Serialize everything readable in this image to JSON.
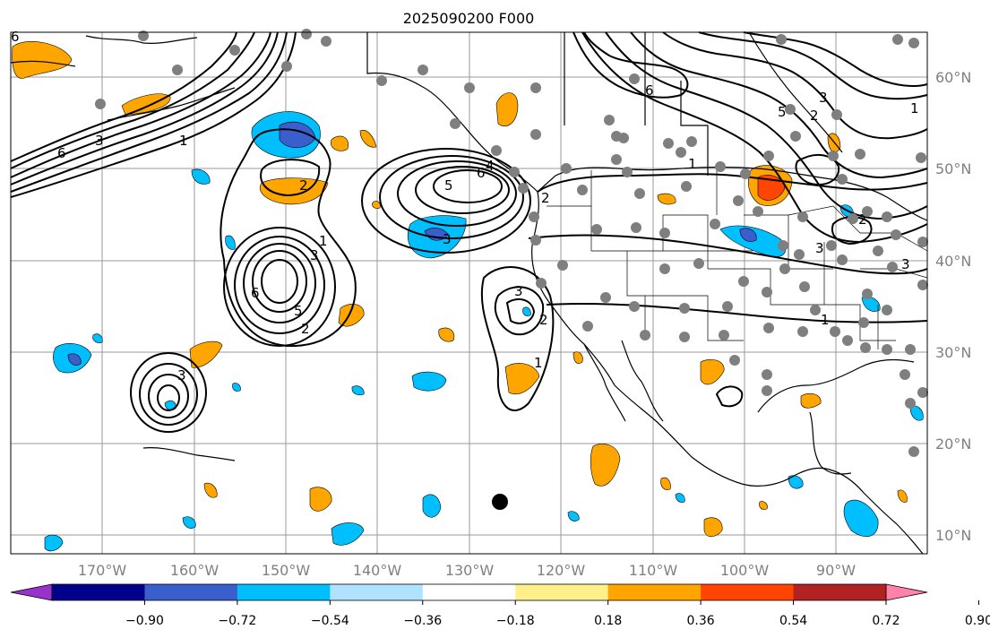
{
  "title": "2025090200 F000",
  "lat_labels": [
    "60°N",
    "50°N",
    "40°N",
    "30°N",
    "20°N",
    "10°N"
  ],
  "lon_labels": [
    "170°W",
    "160°W",
    "150°W",
    "140°W",
    "130°W",
    "120°W",
    "110°W",
    "100°W",
    "90°W"
  ],
  "colorbar": {
    "ticks": [
      "−0.90",
      "−0.72",
      "−0.54",
      "−0.36",
      "−0.18",
      "0.18",
      "0.36",
      "0.54",
      "0.72",
      "0.90"
    ],
    "colors": [
      "#9932cc",
      "#00008b",
      "#3a5fcd",
      "#00bfff",
      "#b0e2ff",
      "#ffffff",
      "#fff08a",
      "#ffa500",
      "#ff4500",
      "#b22222",
      "#ff82ab"
    ],
    "under_color": "#9932cc",
    "over_color": "#ff82ab"
  },
  "contour_labels": [
    "1",
    "2",
    "3",
    "5",
    "6",
    "1",
    "2",
    "3",
    "5",
    "6",
    "3",
    "2",
    "1",
    "3",
    "4",
    "2",
    "6",
    "1",
    "6",
    "2",
    "3",
    "1",
    "5",
    "3",
    "2",
    "1",
    "3",
    "6",
    "3"
  ],
  "colors": {
    "land_line": "#000000",
    "grid": "#9a9a9a",
    "station": "#7f7f7f",
    "marker": "#000000"
  }
}
